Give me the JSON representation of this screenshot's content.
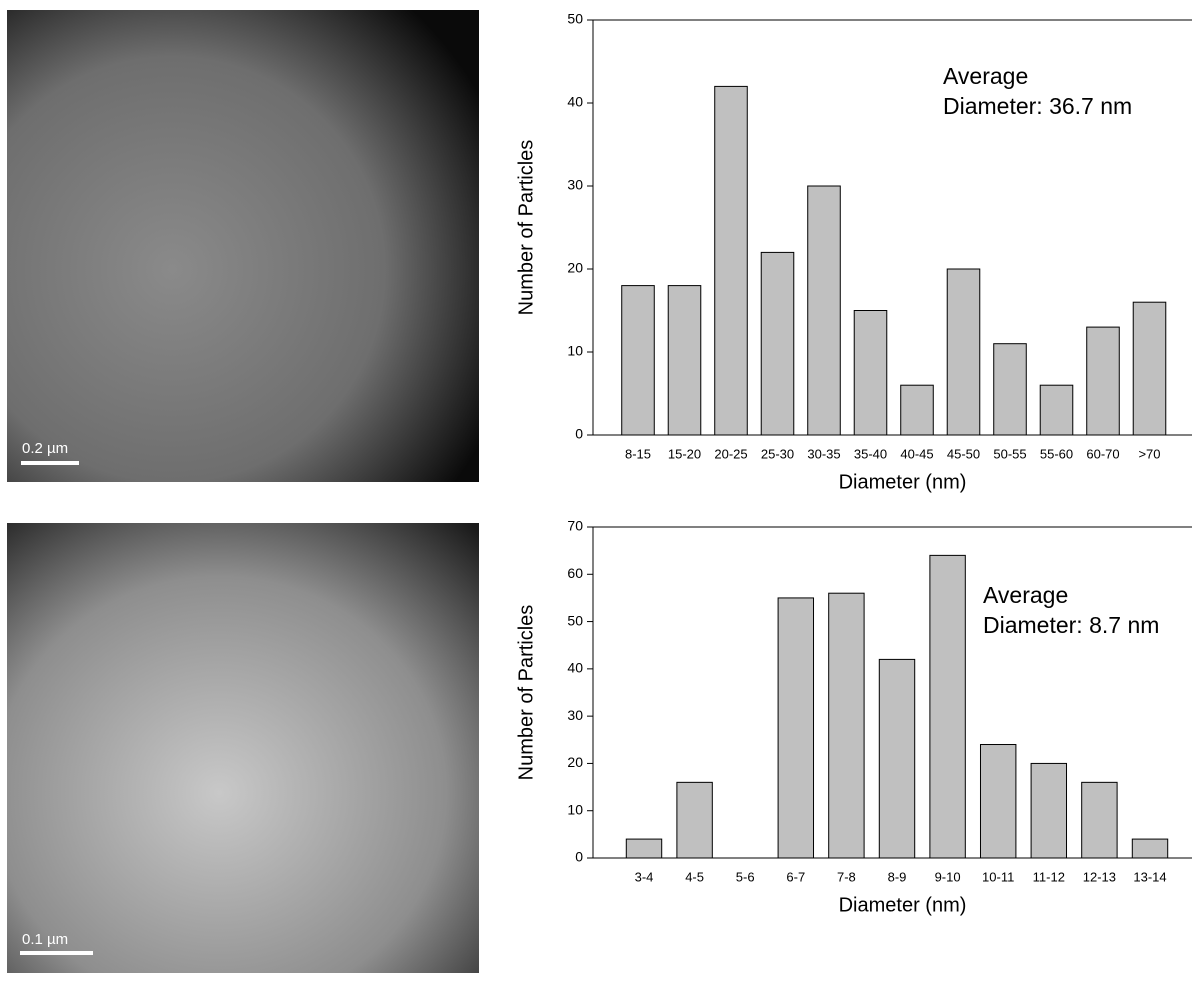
{
  "chart_data": [
    {
      "type": "bar",
      "annotation": [
        "Average",
        "Diameter: 36.7 nm"
      ],
      "x_label": "Diameter (nm)",
      "y_label": "Number of Particles",
      "categories": [
        "8-15",
        "15-20",
        "20-25",
        "25-30",
        "30-35",
        "35-40",
        "40-45",
        "45-50",
        "50-55",
        "55-60",
        "60-70",
        ">70"
      ],
      "values": [
        18,
        18,
        42,
        22,
        30,
        15,
        6,
        20,
        11,
        6,
        13,
        16
      ],
      "color": "#c0c0c0",
      "ylim": [
        0,
        50
      ],
      "yticks": [
        0,
        10,
        20,
        30,
        40,
        50
      ]
    },
    {
      "type": "bar",
      "annotation": [
        "Average",
        "Diameter: 8.7 nm"
      ],
      "x_label": "Diameter (nm)",
      "y_label": "Number of Particles",
      "categories": [
        "3-4",
        "4-5",
        "5-6",
        "6-7",
        "7-8",
        "8-9",
        "9-10",
        "10-11",
        "11-12",
        "12-13",
        "13-14"
      ],
      "values": [
        4,
        16,
        0,
        55,
        56,
        42,
        64,
        24,
        20,
        16,
        4
      ],
      "color": "#c0c0c0",
      "ylim": [
        0,
        70
      ],
      "yticks": [
        0,
        10,
        20,
        30,
        40,
        50,
        60,
        70
      ]
    }
  ],
  "images": [
    {
      "scale_bar": "0.2 µm"
    },
    {
      "scale_bar": "0.1 µm"
    }
  ]
}
